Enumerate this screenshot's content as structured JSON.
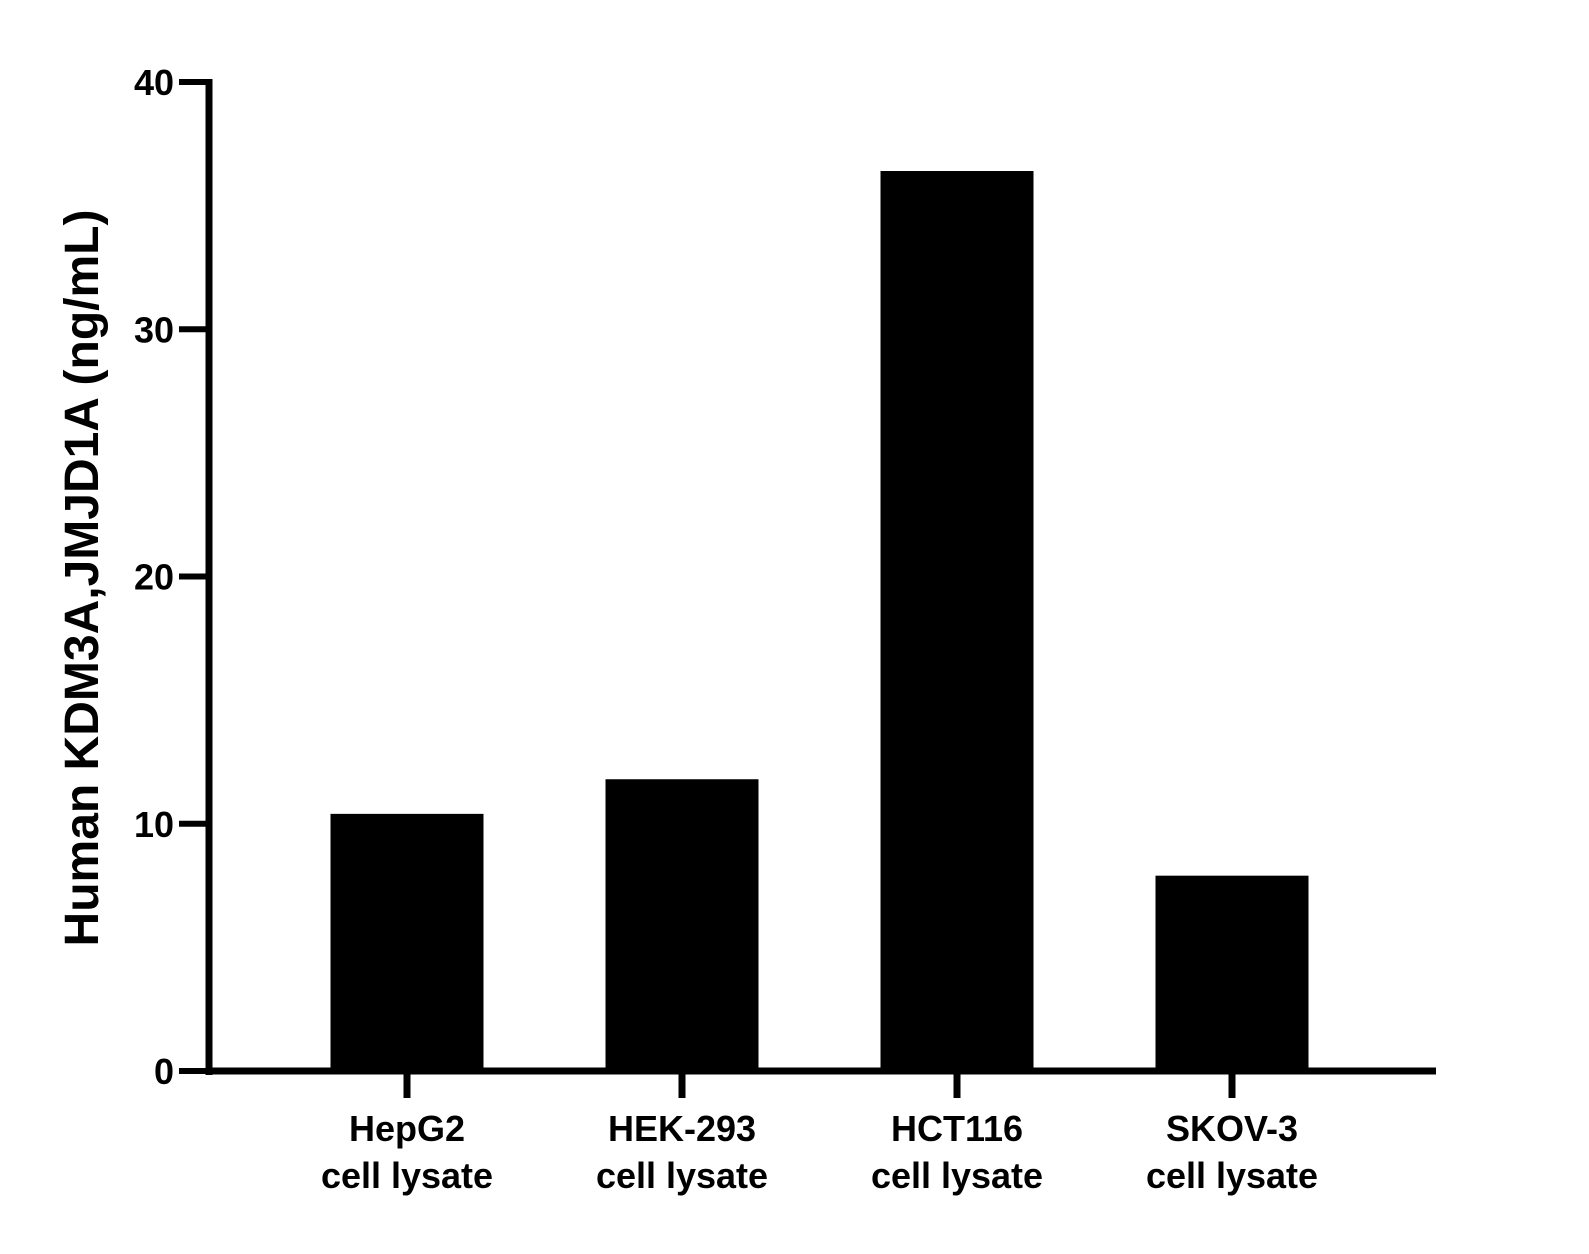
{
  "chart_data": {
    "type": "bar",
    "categories": [
      [
        "HepG2",
        "cell lysate"
      ],
      [
        "HEK-293",
        "cell lysate"
      ],
      [
        "HCT116",
        "cell lysate"
      ],
      [
        "SKOV-3",
        "cell lysate"
      ]
    ],
    "values": [
      10.4,
      11.8,
      36.4,
      7.9
    ],
    "title": "",
    "xlabel": "",
    "ylabel": "Human KDM3A,JMJD1A (ng/mL)",
    "ylim": [
      0,
      40
    ],
    "yticks": [
      "0",
      "10",
      "20",
      "30",
      "40"
    ],
    "grid": false,
    "bar_color": "#000000",
    "axis_color": "#000000"
  }
}
